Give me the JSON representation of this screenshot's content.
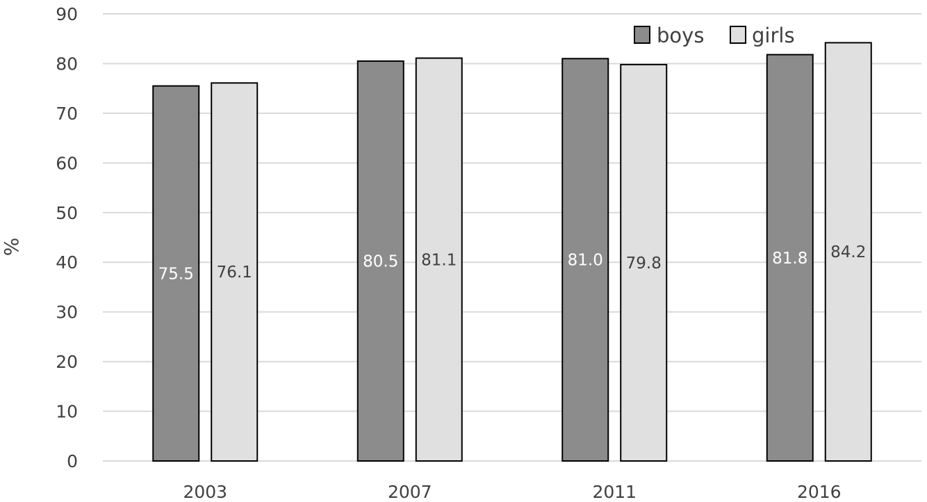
{
  "chart_data": {
    "type": "bar",
    "categories": [
      "2003",
      "2007",
      "2011",
      "2016"
    ],
    "series": [
      {
        "name": "boys",
        "values": [
          75.5,
          80.5,
          81.0,
          81.8
        ],
        "labels": [
          "75.5",
          "80.5",
          "81.0",
          "81.8"
        ],
        "color": "#8c8c8c",
        "label_color": "#ffffff"
      },
      {
        "name": "girls",
        "values": [
          76.1,
          81.1,
          79.8,
          84.2
        ],
        "labels": [
          "76.1",
          "81.1",
          "79.8",
          "84.2"
        ],
        "color": "#e0e0e0",
        "label_color": "#404040"
      }
    ],
    "title": "",
    "xlabel": "",
    "ylabel": "%",
    "ylim": [
      0,
      90
    ],
    "yticks": [
      "0",
      "10",
      "20",
      "30",
      "40",
      "50",
      "60",
      "70",
      "80",
      "90"
    ],
    "grid": true,
    "legend_position": "top-right"
  }
}
